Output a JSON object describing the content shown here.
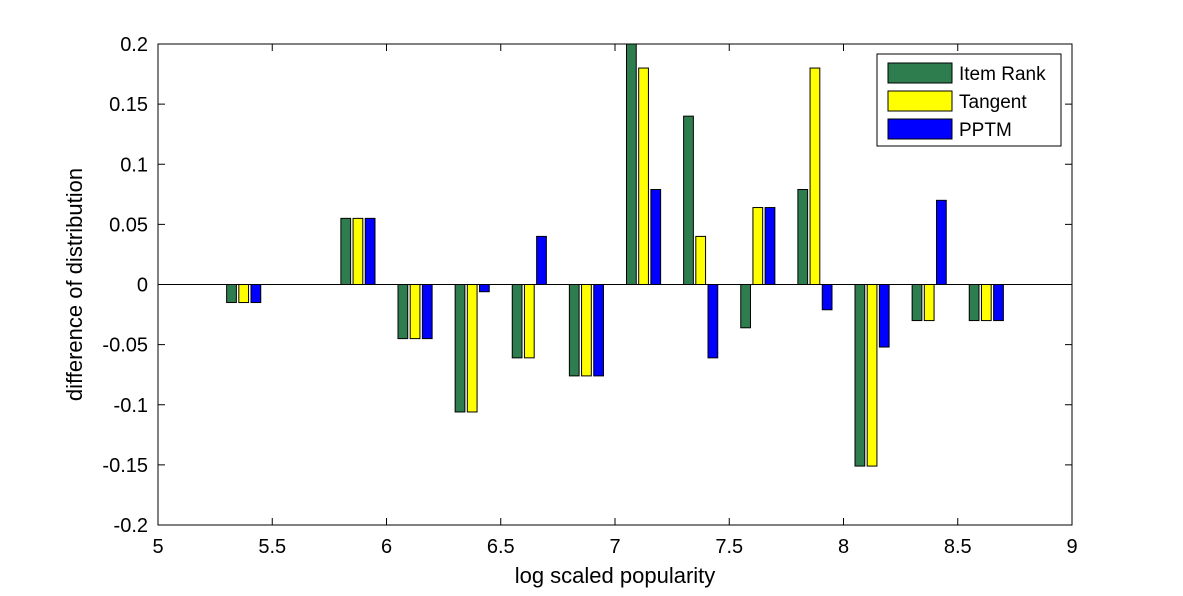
{
  "chart_data": {
    "type": "bar",
    "title": "",
    "xlabel": "log scaled popularity",
    "ylabel": "difference of distribution",
    "xlim": [
      5,
      9
    ],
    "ylim": [
      -0.2,
      0.2
    ],
    "xticks": [
      5,
      5.5,
      6,
      6.5,
      7,
      7.5,
      8,
      8.5,
      9
    ],
    "xtick_labels": [
      "5",
      "5.5",
      "6",
      "6.5",
      "7",
      "7.5",
      "8",
      "8.5",
      "9"
    ],
    "yticks": [
      -0.2,
      -0.15,
      -0.1,
      -0.05,
      0,
      0.05,
      0.1,
      0.15,
      0.2
    ],
    "ytick_labels": [
      "-0.2",
      "-0.15",
      "-0.1",
      "-0.05",
      "0",
      "0.05",
      "0.1",
      "0.15",
      "0.2"
    ],
    "x": [
      5.375,
      5.875,
      6.125,
      6.375,
      6.625,
      6.875,
      7.125,
      7.375,
      7.625,
      7.875,
      8.125,
      8.375,
      8.625
    ],
    "bar_group_width": 0.16,
    "grid": false,
    "legend_position": "top-right",
    "series": [
      {
        "name": "Item Rank",
        "color": "#2e7d4f",
        "values": [
          -0.015,
          0.055,
          -0.045,
          -0.106,
          -0.061,
          -0.076,
          0.2,
          0.14,
          -0.036,
          0.079,
          -0.151,
          -0.03,
          -0.03
        ]
      },
      {
        "name": "Tangent",
        "color": "#ffff00",
        "values": [
          -0.015,
          0.055,
          -0.045,
          -0.106,
          -0.061,
          -0.076,
          0.18,
          0.04,
          0.064,
          0.18,
          -0.151,
          -0.03,
          -0.03
        ]
      },
      {
        "name": "PPTM",
        "color": "#0000ff",
        "values": [
          -0.015,
          0.055,
          -0.045,
          -0.006,
          0.04,
          -0.076,
          0.079,
          -0.061,
          0.064,
          -0.021,
          -0.052,
          0.07,
          -0.03
        ]
      }
    ]
  }
}
